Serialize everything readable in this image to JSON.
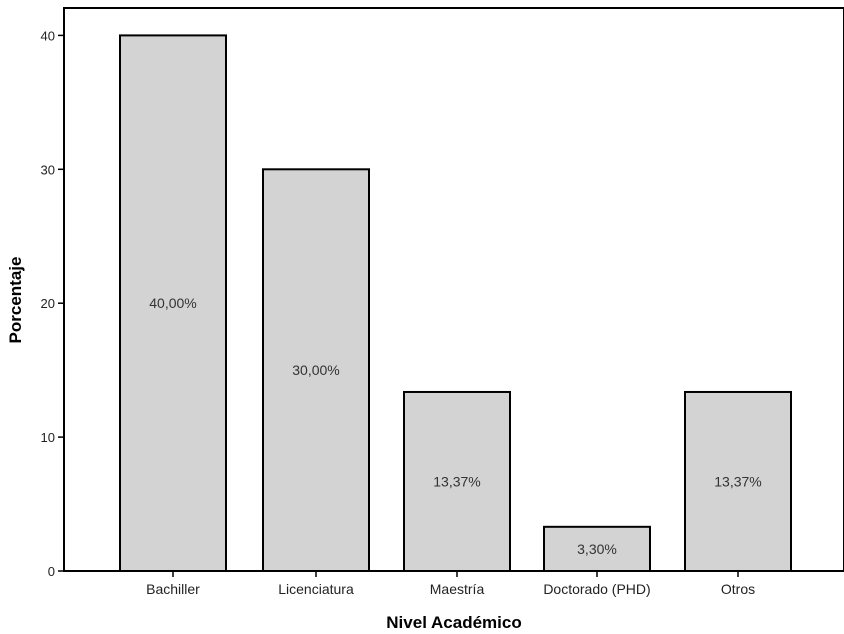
{
  "chart_data": {
    "type": "bar",
    "title": "",
    "xlabel": "Nivel Académico",
    "ylabel": "Porcentaje",
    "categories": [
      "Bachiller",
      "Licenciatura",
      "Maestría",
      "Doctorado (PHD)",
      "Otros"
    ],
    "values": [
      40.0,
      30.0,
      13.37,
      3.3,
      13.37
    ],
    "data_labels": [
      "40,00%",
      "30,00%",
      "13,37%",
      "3,30%",
      "13,37%"
    ],
    "yticks": [
      "0",
      "10",
      "20",
      "30",
      "40"
    ],
    "ylim": [
      0,
      42.5
    ],
    "grid": false,
    "legend": "none",
    "colors": {
      "bar_fill": "#d3d3d3",
      "bar_stroke": "#000000",
      "axis": "#000000"
    }
  }
}
